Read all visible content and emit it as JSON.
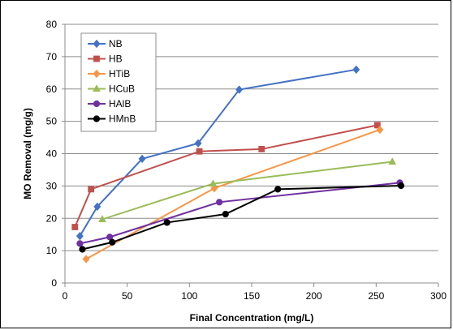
{
  "chart_data": {
    "type": "line",
    "title": "",
    "xlabel": "Final Concentration (mg/L)",
    "ylabel": "MO Removal (mg/g)",
    "xlim": [
      0,
      300
    ],
    "ylim": [
      0,
      80
    ],
    "x_ticks": [
      "0",
      "50",
      "100",
      "150",
      "200",
      "250",
      "300"
    ],
    "y_ticks": [
      "0",
      "10",
      "20",
      "30",
      "40",
      "50",
      "60",
      "70",
      "80"
    ],
    "grid": "horizontal",
    "legend_position": "top-left",
    "series": [
      {
        "name": "NB",
        "color": "#4472C4",
        "marker": "diamond",
        "x": [
          12,
          26,
          62,
          107,
          140,
          234
        ],
        "y": [
          14.5,
          23.6,
          38.4,
          43.2,
          59.8,
          66.0
        ]
      },
      {
        "name": "HB",
        "color": "#C0504D",
        "marker": "square",
        "x": [
          8,
          21,
          108,
          158,
          251
        ],
        "y": [
          17.3,
          29.0,
          40.7,
          41.4,
          48.8
        ]
      },
      {
        "name": "HTiB",
        "color": "#F79646",
        "marker": "diamond",
        "x": [
          17,
          120,
          253
        ],
        "y": [
          7.4,
          29.3,
          47.4
        ]
      },
      {
        "name": "HCuB",
        "color": "#9BBB59",
        "marker": "triangle",
        "x": [
          30,
          119,
          263
        ],
        "y": [
          19.7,
          30.7,
          37.5
        ]
      },
      {
        "name": "HAlB",
        "color": "#7030A0",
        "marker": "circle",
        "x": [
          12,
          36,
          124,
          269
        ],
        "y": [
          12.2,
          14.2,
          25.0,
          31.0
        ]
      },
      {
        "name": "HMnB",
        "color": "#000000",
        "marker": "circle",
        "x": [
          14,
          38,
          82,
          129,
          171,
          270
        ],
        "y": [
          10.4,
          12.6,
          18.7,
          21.3,
          29.0,
          30.1
        ]
      }
    ]
  }
}
